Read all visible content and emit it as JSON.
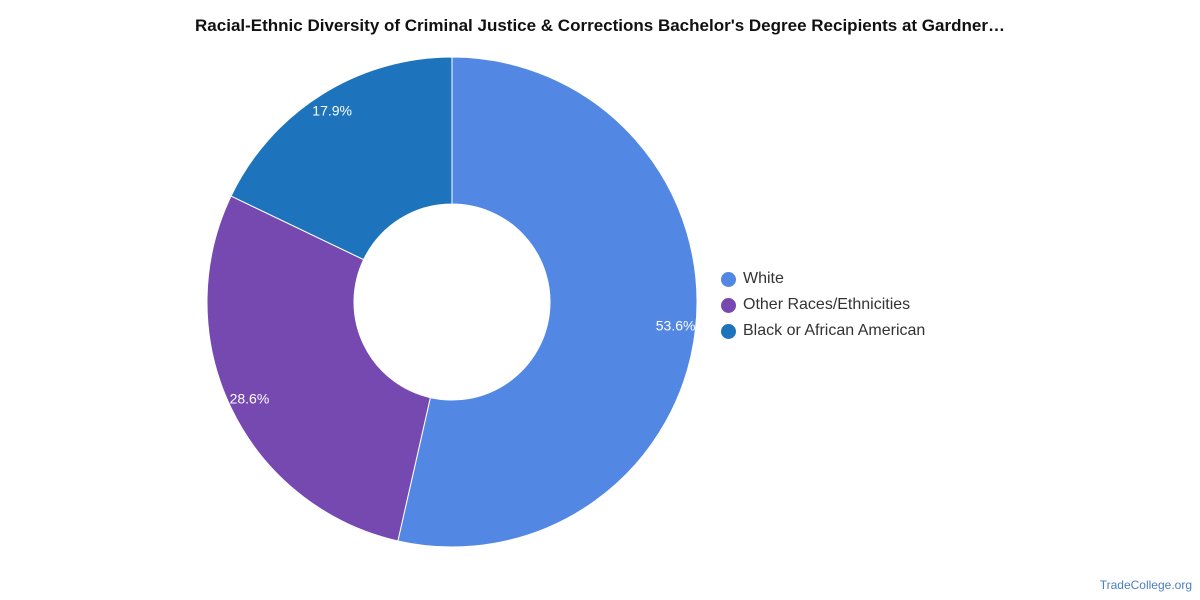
{
  "chart_data": {
    "type": "pie",
    "title": "Racial-Ethnic Diversity of Criminal Justice & Corrections Bachelor's Degree Recipients at Gardner…",
    "categories": [
      "White",
      "Other Races/Ethnicities",
      "Black or African American"
    ],
    "values": [
      53.6,
      28.6,
      17.9
    ],
    "value_labels": [
      "53.6%",
      "28.6%",
      "17.9%"
    ],
    "colors": [
      "#5287e3",
      "#7649b1",
      "#1e74bc"
    ],
    "donut": true,
    "legend_position": "right"
  },
  "source": "TradeCollege.org"
}
